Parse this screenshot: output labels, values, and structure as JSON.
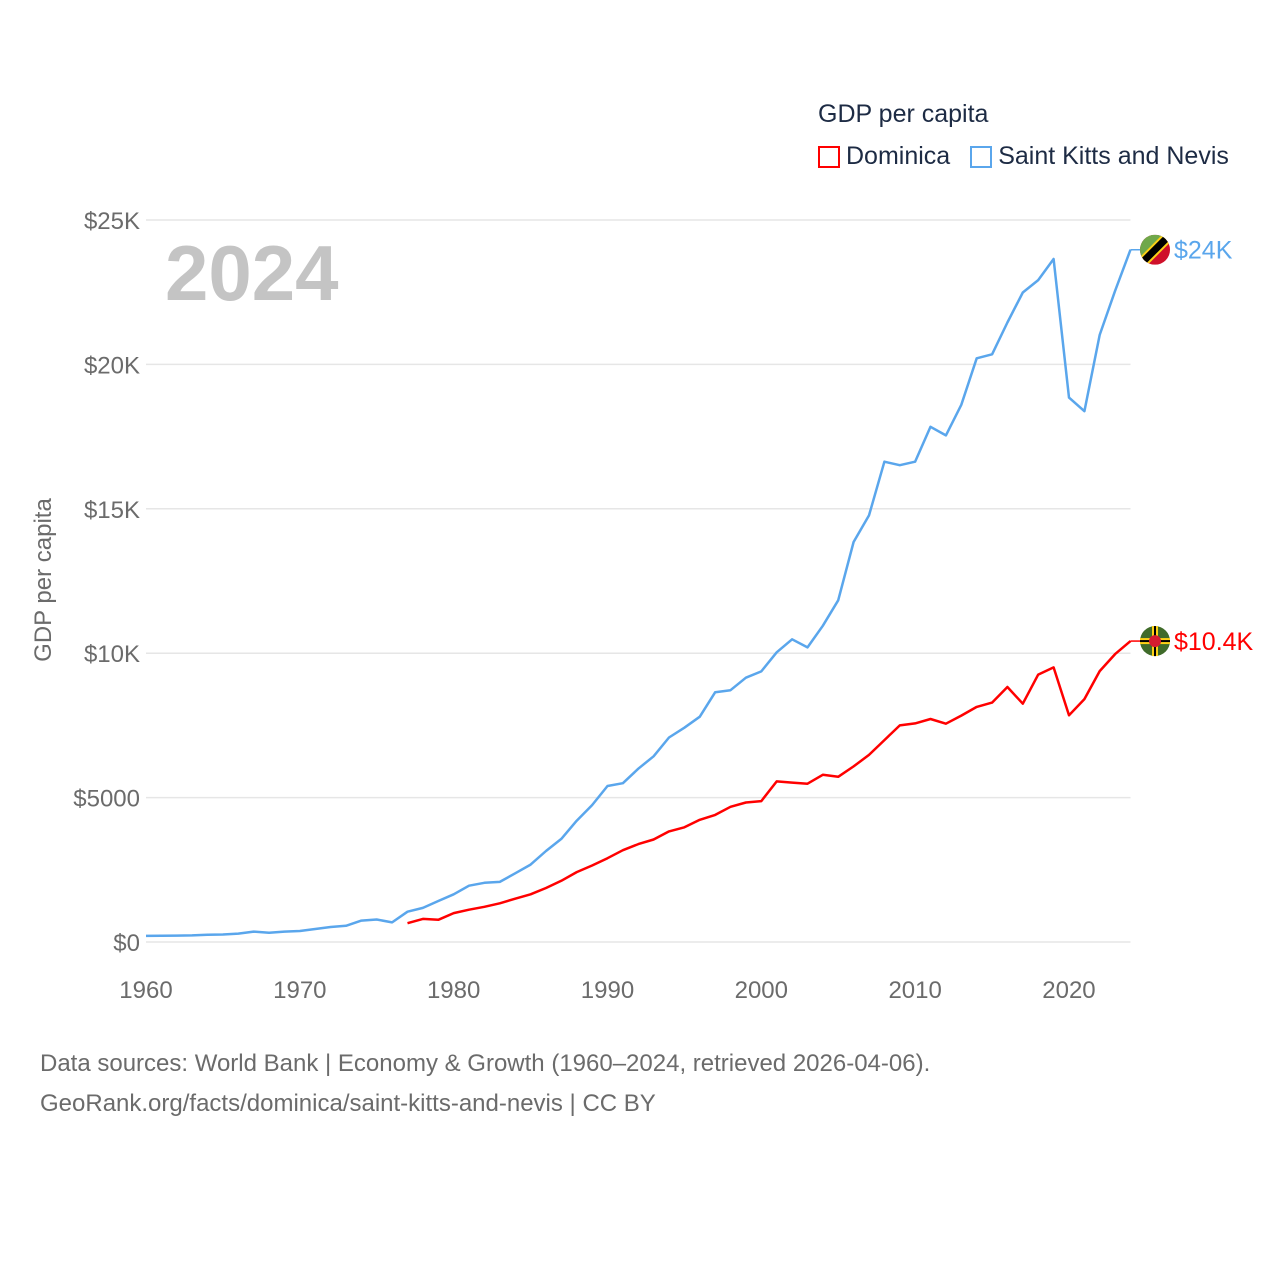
{
  "chart_data": {
    "type": "line",
    "title": "GDP per capita",
    "ylabel": "GDP per capita",
    "xlabel": "",
    "xlim": [
      1960,
      2024
    ],
    "ylim": [
      0,
      25000
    ],
    "x_ticks": [
      "1960",
      "1970",
      "1980",
      "1990",
      "2000",
      "2010",
      "2020"
    ],
    "y_ticks": [
      "$0",
      "$5000",
      "$10K",
      "$15K",
      "$20K",
      "$25K"
    ],
    "grid": true,
    "legend_position": "top-right",
    "year_label": "2024",
    "series": [
      {
        "name": "Dominica",
        "color": "#ff0000",
        "end_label": "$10.4K",
        "start_year": 1977,
        "values": [
          650,
          800,
          770,
          1000,
          1120,
          1220,
          1340,
          1500,
          1650,
          1870,
          2120,
          2420,
          2650,
          2900,
          3180,
          3390,
          3550,
          3830,
          3970,
          4230,
          4400,
          4680,
          4830,
          4880,
          5560,
          5520,
          5480,
          5790,
          5720,
          6080,
          6480,
          6990,
          7500,
          7570,
          7720,
          7560,
          7840,
          8140,
          8290,
          8830,
          8250,
          9260,
          9510,
          7850,
          8410,
          9380,
          9970,
          10420
        ]
      },
      {
        "name": "Saint Kitts and Nevis",
        "color": "#5aa6ec",
        "end_label": "$24K",
        "start_year": 1960,
        "values": [
          210,
          215,
          220,
          230,
          250,
          260,
          290,
          360,
          320,
          360,
          380,
          450,
          520,
          560,
          740,
          780,
          680,
          1050,
          1180,
          1420,
          1650,
          1950,
          2050,
          2080,
          2380,
          2680,
          3150,
          3570,
          4200,
          4740,
          5400,
          5500,
          6000,
          6430,
          7080,
          7420,
          7800,
          8650,
          8720,
          9150,
          9370,
          10030,
          10480,
          10200,
          10950,
          11830,
          13850,
          14770,
          16630,
          16510,
          16630,
          17840,
          17540,
          18600,
          20210,
          20350,
          21450,
          22490,
          22920,
          23650,
          18850,
          18380,
          21020,
          22550,
          23970
        ]
      }
    ]
  },
  "footer": {
    "line1": "Data sources: World Bank | Economy & Growth (1960–2024, retrieved 2026-04-06).",
    "line2": "GeoRank.org/facts/dominica/saint-kitts-and-nevis | CC BY"
  }
}
